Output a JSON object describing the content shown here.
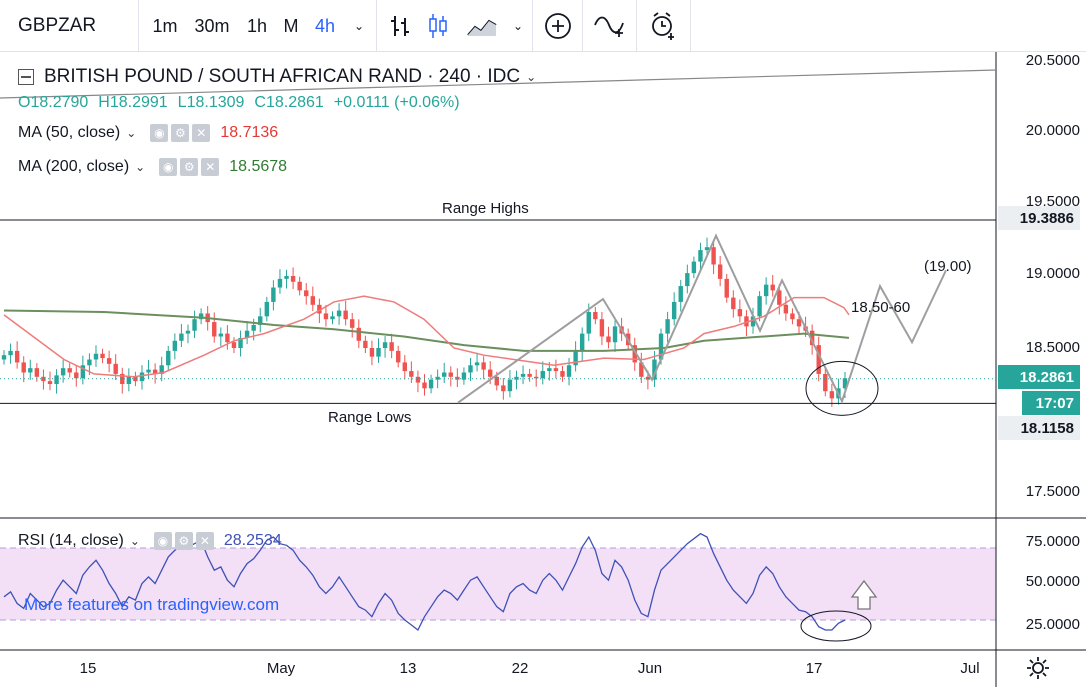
{
  "toolbar": {
    "symbol": "GBPZAR",
    "intervals": [
      "1m",
      "30m",
      "1h",
      "M",
      "4h"
    ],
    "active_interval": "4h",
    "icons": [
      "chevron-down-icon",
      "bar-style-icon",
      "candles-icon",
      "area-icon",
      "chevron-down-icon",
      "add-indicator-icon",
      "compare-icon",
      "alert-icon"
    ]
  },
  "legend": {
    "title": "BRITISH POUND / SOUTH AFRICAN RAND · 240 · IDC",
    "open": "O18.2790",
    "high": "H18.2991",
    "low": "L18.1309",
    "close": "C18.2861",
    "change": "+0.0111 (+0.06%)",
    "ma50_label": "MA (50, close)",
    "ma50_value": "18.7136",
    "ma200_label": "MA (200, close)",
    "ma200_value": "18.5678",
    "rsi_label": "RSI (14, close)",
    "rsi_value": "28.2534"
  },
  "price_axis": {
    "ticks": [
      "20.5000",
      "20.0000",
      "19.5000",
      "19.0000",
      "18.5000",
      "17.5000"
    ],
    "range_high_tag": "19.3886",
    "current_price_tag": "18.2861",
    "countdown_tag": "17:07",
    "range_low_tag": "18.1158"
  },
  "rsi_axis": {
    "ticks": [
      "75.0000",
      "50.0000",
      "25.0000"
    ]
  },
  "time_axis": {
    "labels": [
      "15",
      "May",
      "13",
      "22",
      "Jun",
      "17",
      "Jul"
    ]
  },
  "annotations": {
    "range_highs": "Range Highs",
    "range_lows": "Range Lows",
    "target_1": "18.50-60",
    "target_2": "(19.00)"
  },
  "watermark": "More features on tradingview.com",
  "colors": {
    "up": "#26a69a",
    "down": "#ef5350",
    "ma50": "#ef7b7b",
    "ma200": "#6b8f5e",
    "rsi": "#3f51b5",
    "rsi_band": "#f3e0f7",
    "accent": "#2962ff"
  },
  "chart_data": {
    "type": "candlestick",
    "symbol": "GBPZAR",
    "interval": "240",
    "price_range": [
      17.2,
      20.6
    ],
    "horizontal_levels": {
      "range_high": 19.3886,
      "range_low": 18.1158
    },
    "ma50_path": [
      [
        0,
        18.73
      ],
      [
        60,
        18.42
      ],
      [
        90,
        18.32
      ],
      [
        130,
        18.3
      ],
      [
        160,
        18.33
      ],
      [
        200,
        18.45
      ],
      [
        230,
        18.55
      ],
      [
        260,
        18.6
      ],
      [
        300,
        18.7
      ],
      [
        330,
        18.82
      ],
      [
        360,
        18.86
      ],
      [
        390,
        18.82
      ],
      [
        420,
        18.7
      ],
      [
        450,
        18.5
      ],
      [
        480,
        18.45
      ],
      [
        510,
        18.42
      ],
      [
        550,
        18.38
      ],
      [
        600,
        18.43
      ],
      [
        640,
        18.42
      ],
      [
        680,
        18.5
      ],
      [
        700,
        18.6
      ],
      [
        730,
        18.65
      ],
      [
        760,
        18.72
      ],
      [
        790,
        18.85
      ],
      [
        820,
        18.85
      ],
      [
        840,
        18.78
      ],
      [
        845,
        18.73
      ]
    ],
    "ma200_path": [
      [
        0,
        18.76
      ],
      [
        100,
        18.75
      ],
      [
        200,
        18.71
      ],
      [
        270,
        18.66
      ],
      [
        330,
        18.63
      ],
      [
        400,
        18.58
      ],
      [
        460,
        18.52
      ],
      [
        520,
        18.48
      ],
      [
        600,
        18.48
      ],
      [
        660,
        18.5
      ],
      [
        700,
        18.55
      ],
      [
        760,
        18.58
      ],
      [
        800,
        18.6
      ],
      [
        845,
        18.57
      ]
    ],
    "closes": [
      18.45,
      18.48,
      18.4,
      18.33,
      18.36,
      18.3,
      18.27,
      18.25,
      18.31,
      18.36,
      18.33,
      18.29,
      18.38,
      18.42,
      18.46,
      18.43,
      18.39,
      18.32,
      18.25,
      18.3,
      18.27,
      18.33,
      18.35,
      18.32,
      18.38,
      18.48,
      18.55,
      18.6,
      18.62,
      18.7,
      18.74,
      18.68,
      18.58,
      18.6,
      18.54,
      18.5,
      18.57,
      18.62,
      18.66,
      18.72,
      18.82,
      18.92,
      18.98,
      19.0,
      18.96,
      18.9,
      18.86,
      18.8,
      18.74,
      18.7,
      18.72,
      18.76,
      18.7,
      18.64,
      18.55,
      18.5,
      18.44,
      18.5,
      18.54,
      18.48,
      18.4,
      18.34,
      18.3,
      18.26,
      18.22,
      18.28,
      18.3,
      18.33,
      18.3,
      18.28,
      18.33,
      18.38,
      18.4,
      18.35,
      18.3,
      18.24,
      18.2,
      18.28,
      18.3,
      18.32,
      18.3,
      18.29,
      18.34,
      18.36,
      18.34,
      18.3,
      18.38,
      18.48,
      18.6,
      18.75,
      18.7,
      18.58,
      18.54,
      18.65,
      18.6,
      18.52,
      18.4,
      18.3,
      18.28,
      18.42,
      18.6,
      18.7,
      18.82,
      18.93,
      19.02,
      19.1,
      19.18,
      19.2,
      19.08,
      18.98,
      18.85,
      18.77,
      18.72,
      18.65,
      18.72,
      18.86,
      18.94,
      18.9,
      18.8,
      18.74,
      18.7,
      18.65,
      18.62,
      18.52,
      18.32,
      18.2,
      18.15,
      18.22,
      18.29
    ],
    "rsi_band": [
      30,
      70
    ],
    "rsi_range": [
      15,
      80
    ],
    "rsi_values": [
      42,
      45,
      38,
      35,
      44,
      40,
      36,
      38,
      46,
      52,
      48,
      44,
      55,
      60,
      64,
      58,
      50,
      44,
      36,
      42,
      40,
      50,
      54,
      50,
      58,
      66,
      70,
      73,
      72,
      74,
      76,
      66,
      58,
      60,
      52,
      48,
      56,
      62,
      65,
      70,
      76,
      78,
      74,
      73,
      70,
      64,
      60,
      55,
      48,
      44,
      48,
      54,
      48,
      42,
      36,
      34,
      30,
      38,
      44,
      40,
      32,
      28,
      25,
      22,
      30,
      36,
      42,
      46,
      44,
      40,
      46,
      52,
      54,
      48,
      42,
      36,
      33,
      44,
      48,
      50,
      46,
      44,
      52,
      56,
      52,
      46,
      54,
      62,
      72,
      78,
      70,
      56,
      52,
      64,
      60,
      52,
      40,
      32,
      30,
      46,
      58,
      62,
      66,
      70,
      74,
      77,
      80,
      78,
      68,
      60,
      52,
      46,
      42,
      38,
      44,
      55,
      60,
      56,
      48,
      42,
      38,
      34,
      33,
      30,
      24,
      22,
      22,
      26,
      28
    ]
  }
}
